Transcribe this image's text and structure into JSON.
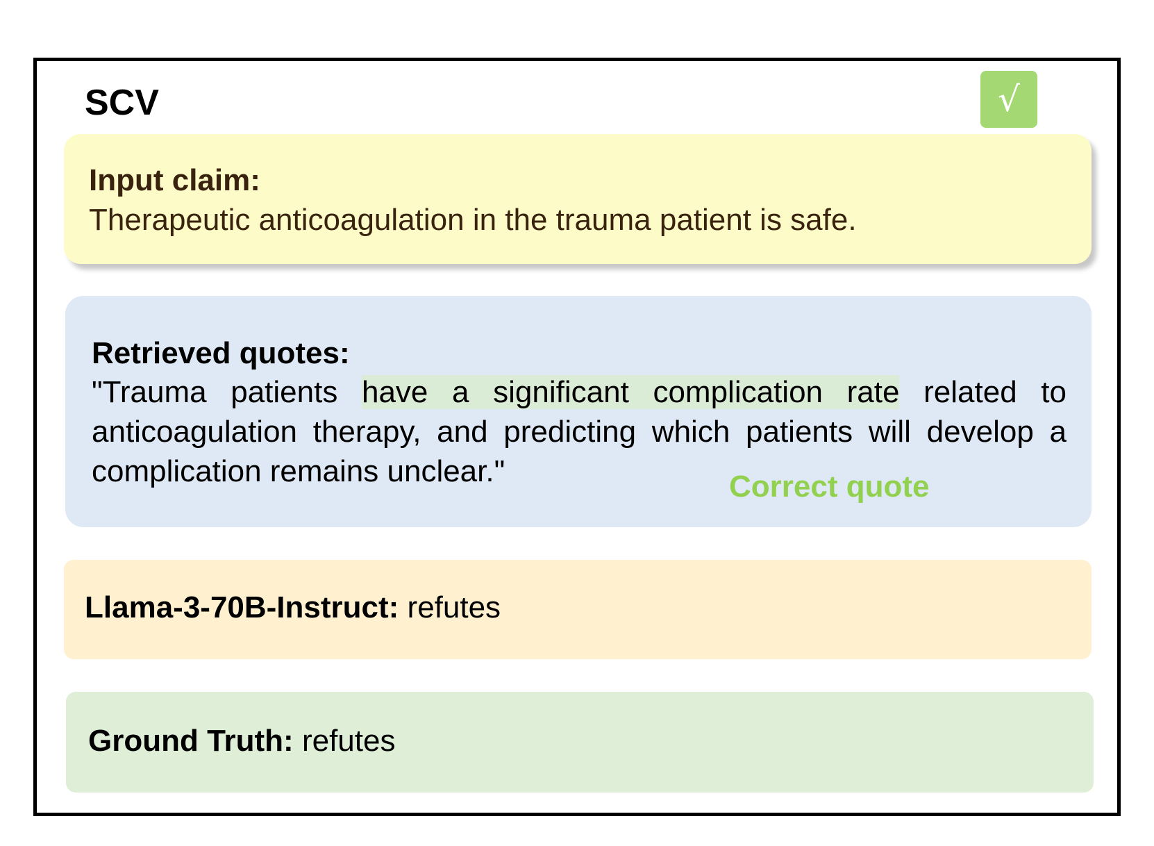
{
  "title": "SCV",
  "check_mark": "√",
  "claim": {
    "label": "Input claim:",
    "text": "Therapeutic anticoagulation in the trauma patient is safe."
  },
  "quotes": {
    "label": "Retrieved quotes:",
    "text_before": "\"Trauma patients ",
    "highlighted": "have a significant complication rate",
    "text_after": " related to anticoagulation therapy, and predicting which patients will develop a complication remains unclear.\"",
    "annotation": "Correct quote"
  },
  "model": {
    "label": "Llama-3-70B-Instruct:",
    "verdict": " refutes"
  },
  "ground_truth": {
    "label": "Ground Truth:",
    "verdict": " refutes"
  },
  "colors": {
    "check_bg": "#a3d873",
    "claim_bg": "#fdfbc7",
    "quote_bg": "#dfe9f5",
    "highlight": "#dbecd6",
    "annotation": "#92d050",
    "model_bg": "#fff1cf",
    "ground_truth_bg": "#dfeed7"
  }
}
